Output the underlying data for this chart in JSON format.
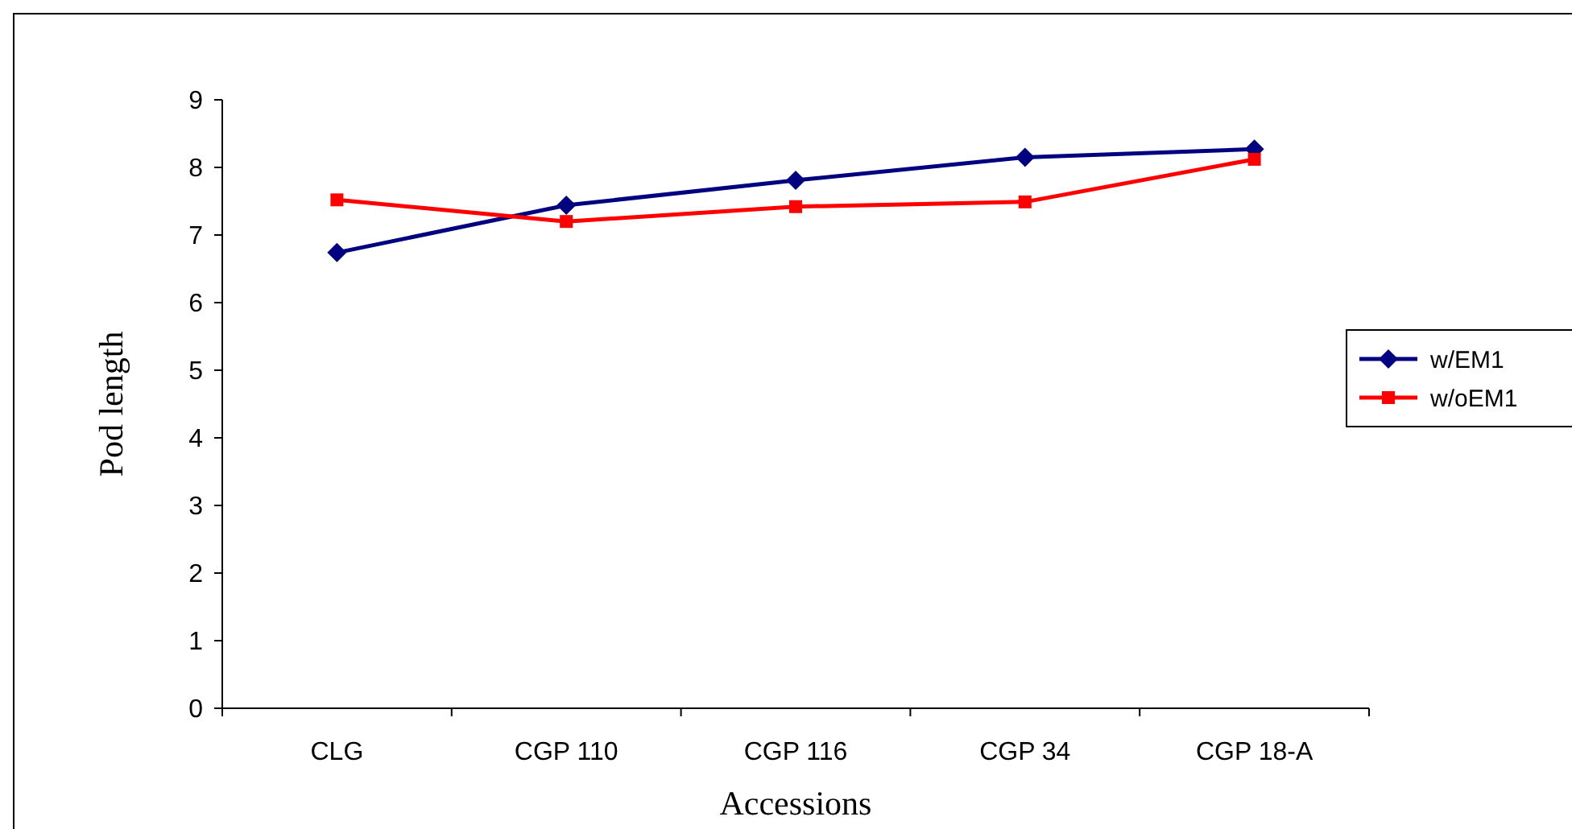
{
  "chart_data": {
    "type": "line",
    "xlabel": "Accessions",
    "ylabel": "Pod length",
    "categories": [
      "CLG",
      "CGP 110",
      "CGP 116",
      "CGP 34",
      "CGP 18-A"
    ],
    "series": [
      {
        "name": "w/EM1",
        "color": "#000080",
        "marker": "diamond",
        "values": [
          6.74,
          7.44,
          7.81,
          8.15,
          8.27
        ]
      },
      {
        "name": "w/oEM1",
        "color": "#ff0000",
        "marker": "square",
        "values": [
          7.52,
          7.2,
          7.42,
          7.49,
          8.12
        ]
      }
    ],
    "ylim": [
      0,
      9
    ],
    "yticks": [
      0,
      1,
      2,
      3,
      4,
      5,
      6,
      7,
      8,
      9
    ],
    "grid": false,
    "legend": "right"
  }
}
